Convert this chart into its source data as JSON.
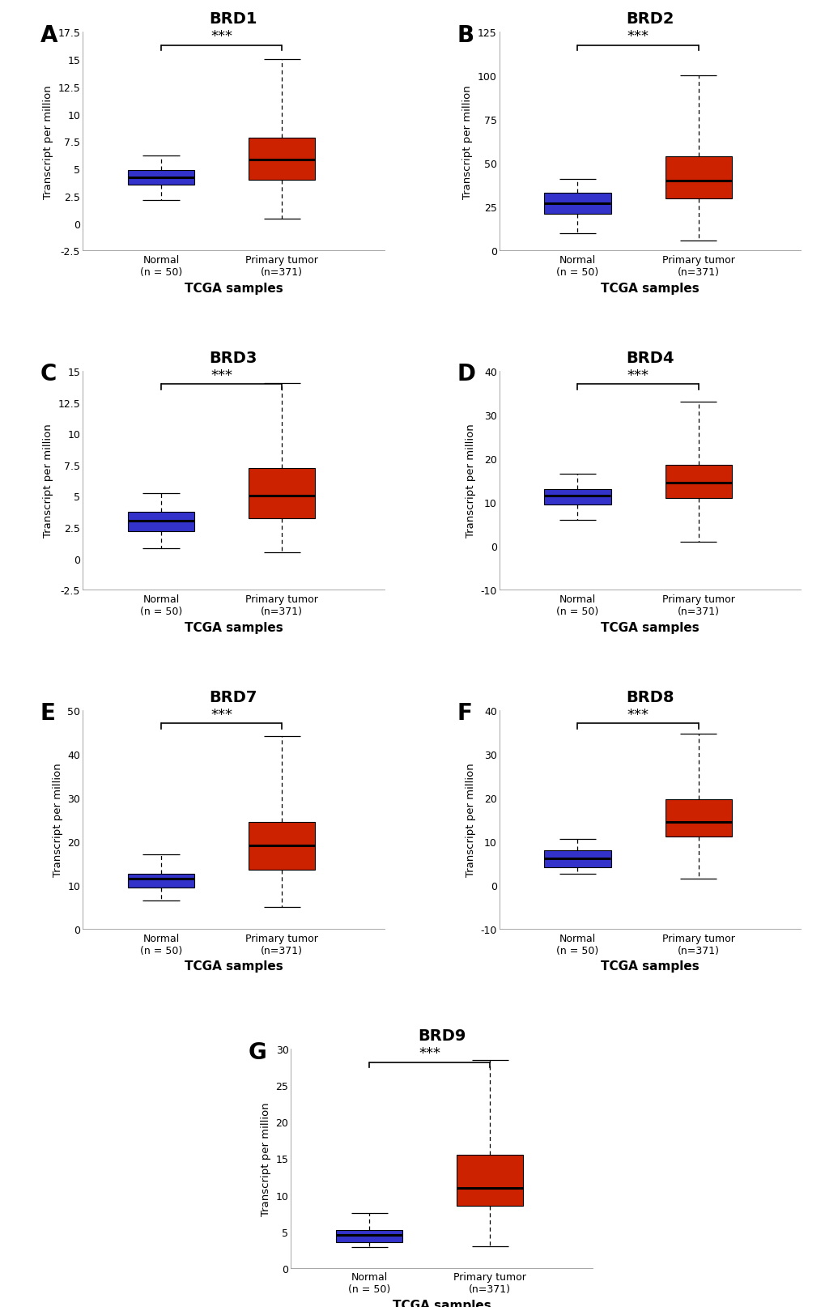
{
  "panels": [
    {
      "label": "A",
      "title": "BRD1",
      "ylim": [
        -2.5,
        17.5
      ],
      "yticks": [
        -2.5,
        0,
        2.5,
        5.0,
        7.5,
        10.0,
        12.5,
        15.0,
        17.5
      ],
      "normal": {
        "q1": 3.5,
        "median": 4.2,
        "q3": 4.9,
        "whislo": 2.1,
        "whishi": 6.2
      },
      "tumor": {
        "q1": 4.0,
        "median": 5.8,
        "q3": 7.8,
        "whislo": 0.4,
        "whishi": 15.0
      }
    },
    {
      "label": "B",
      "title": "BRD2",
      "ylim": [
        0,
        125
      ],
      "yticks": [
        0,
        25,
        50,
        75,
        100,
        125
      ],
      "normal": {
        "q1": 21,
        "median": 27,
        "q3": 33,
        "whislo": 10,
        "whishi": 41
      },
      "tumor": {
        "q1": 30,
        "median": 40,
        "q3": 54,
        "whislo": 6,
        "whishi": 100
      }
    },
    {
      "label": "C",
      "title": "BRD3",
      "ylim": [
        -2.5,
        15
      ],
      "yticks": [
        -2.5,
        0,
        2.5,
        5.0,
        7.5,
        10.0,
        12.5,
        15.0
      ],
      "normal": {
        "q1": 2.2,
        "median": 3.0,
        "q3": 3.7,
        "whislo": 0.8,
        "whishi": 5.2
      },
      "tumor": {
        "q1": 3.2,
        "median": 5.0,
        "q3": 7.2,
        "whislo": 0.5,
        "whishi": 14.0
      }
    },
    {
      "label": "D",
      "title": "BRD4",
      "ylim": [
        -10,
        40
      ],
      "yticks": [
        -10,
        0,
        10,
        20,
        30,
        40
      ],
      "normal": {
        "q1": 9.5,
        "median": 11.5,
        "q3": 13.0,
        "whislo": 6.0,
        "whishi": 16.5
      },
      "tumor": {
        "q1": 11.0,
        "median": 14.5,
        "q3": 18.5,
        "whislo": 1.0,
        "whishi": 33.0
      }
    },
    {
      "label": "E",
      "title": "BRD7",
      "ylim": [
        0,
        50
      ],
      "yticks": [
        0,
        10,
        20,
        30,
        40,
        50
      ],
      "normal": {
        "q1": 9.5,
        "median": 11.5,
        "q3": 12.5,
        "whislo": 6.5,
        "whishi": 17.0
      },
      "tumor": {
        "q1": 13.5,
        "median": 19.0,
        "q3": 24.5,
        "whislo": 5.0,
        "whishi": 44.0
      }
    },
    {
      "label": "F",
      "title": "BRD8",
      "ylim": [
        -10,
        40
      ],
      "yticks": [
        -10,
        0,
        10,
        20,
        30,
        40
      ],
      "normal": {
        "q1": 4.0,
        "median": 6.0,
        "q3": 8.0,
        "whislo": 2.5,
        "whishi": 10.5
      },
      "tumor": {
        "q1": 11.0,
        "median": 14.5,
        "q3": 19.5,
        "whislo": 1.5,
        "whishi": 34.5
      }
    },
    {
      "label": "G",
      "title": "BRD9",
      "ylim": [
        0,
        30
      ],
      "yticks": [
        0,
        5,
        10,
        15,
        20,
        25,
        30
      ],
      "normal": {
        "q1": 3.5,
        "median": 4.5,
        "q3": 5.2,
        "whislo": 2.8,
        "whishi": 7.5
      },
      "tumor": {
        "q1": 8.5,
        "median": 11.0,
        "q3": 15.5,
        "whislo": 3.0,
        "whishi": 28.5
      }
    }
  ],
  "normal_color": "#3333cc",
  "tumor_color": "#cc2200",
  "normal_label": "Normal\n(n = 50)",
  "tumor_label": "Primary tumor\n(n=371)",
  "ylabel": "Transcript per million",
  "xlabel": "TCGA samples",
  "sig_text": "***",
  "box_width": 0.55,
  "background_color": "#ffffff"
}
